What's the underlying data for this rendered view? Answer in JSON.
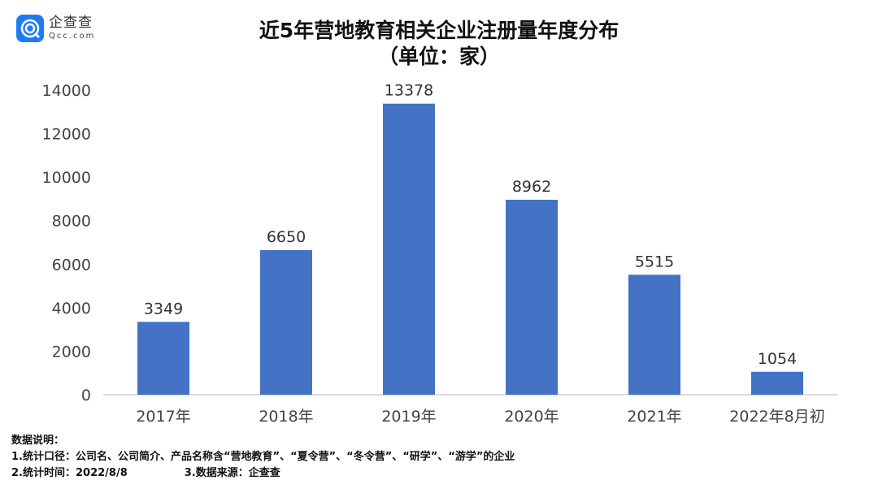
{
  "logo": {
    "cn": "企查查",
    "en": "Qcc.com"
  },
  "chart_data": {
    "type": "bar",
    "title": "近5年营地教育相关企业注册量年度分布",
    "subtitle": "（单位：家）",
    "categories": [
      "2017年",
      "2018年",
      "2019年",
      "2020年",
      "2021年",
      "2022年8月初"
    ],
    "values": [
      3349,
      6650,
      13378,
      8962,
      5515,
      1054
    ],
    "ylim": [
      0,
      14000
    ],
    "yticks": [
      0,
      2000,
      4000,
      6000,
      8000,
      10000,
      12000,
      14000
    ],
    "grid": false,
    "bar_color": "#4472c4",
    "data_labels": true
  },
  "notes": {
    "heading": "数据说明：",
    "line1": "1.统计口径：公司名、公司简介、产品名称含“营地教育”、“夏令营”、“冬令营”、“研学”、“游学”的企业",
    "line2a": "2.统计时间：2022/8/8",
    "line2b": "3.数据来源：企查查"
  }
}
